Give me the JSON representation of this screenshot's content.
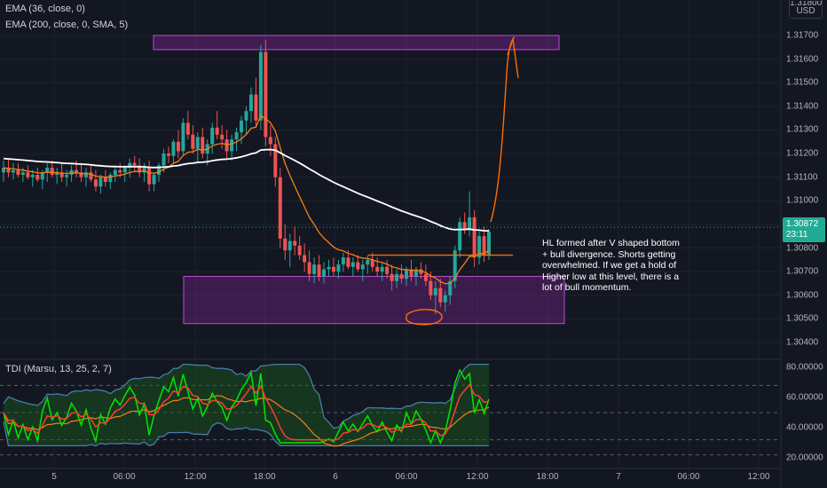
{
  "legend": {
    "ema36": "EMA (36, close, 0)",
    "ema200": "EMA (200, close, 0, SMA, 5)",
    "tdi": "TDI (Marsu, 13, 25, 2, 7)"
  },
  "currency": {
    "top": "1.31800",
    "unit": "USD"
  },
  "price_axis": [
    "1.31700",
    "1.31600",
    "1.31500",
    "1.31400",
    "1.31300",
    "1.31200",
    "1.31100",
    "1.31000",
    "1.30900",
    "1.30800",
    "1.30700",
    "1.30600",
    "1.30500",
    "1.30400"
  ],
  "current_price": {
    "value": "1.30872",
    "countdown": "23:11"
  },
  "tdi_axis": [
    "80.00000",
    "60.00000",
    "40.00000",
    "20.00000"
  ],
  "time_axis": [
    "5",
    "06:00",
    "12:00",
    "18:00",
    "6",
    "06:00",
    "12:00",
    "18:00",
    "7",
    "06:00",
    "12:00"
  ],
  "annotation": "HL formed after V shaped bottom + bull divergence. Shorts getting overwhelmed. If we get a hold of Higher low at this level, there is a lot of bull momentum.",
  "colors": {
    "background": "#131722",
    "bull": "#26a69a",
    "bear": "#ef5350",
    "ema36": "#f57f17",
    "ema200": "#ffffff",
    "zone_fill": "#9c27b0",
    "drawing": "#ff6d00",
    "tdi_green": "#00e600",
    "tdi_red": "#ff3b30",
    "tdi_band": "#4a7ba7"
  },
  "chart_data": {
    "type": "candlestick",
    "symbol_currency": "USD",
    "ylim": [
      1.3036,
      1.3182
    ],
    "candles": [
      [
        1.3112,
        1.3117,
        1.3108,
        1.3114
      ],
      [
        1.3114,
        1.3118,
        1.311,
        1.3112
      ],
      [
        1.3112,
        1.3116,
        1.3109,
        1.3113
      ],
      [
        1.3113,
        1.3116,
        1.311,
        1.3111
      ],
      [
        1.3111,
        1.3114,
        1.3108,
        1.3112
      ],
      [
        1.3112,
        1.3115,
        1.3109,
        1.311
      ],
      [
        1.311,
        1.3113,
        1.3106,
        1.3111
      ],
      [
        1.3111,
        1.3114,
        1.3108,
        1.3109
      ],
      [
        1.3109,
        1.3113,
        1.3105,
        1.3112
      ],
      [
        1.3112,
        1.3116,
        1.3108,
        1.3114
      ],
      [
        1.3114,
        1.3117,
        1.311,
        1.3111
      ],
      [
        1.3111,
        1.3114,
        1.3107,
        1.3112
      ],
      [
        1.3112,
        1.3116,
        1.3108,
        1.311
      ],
      [
        1.311,
        1.3113,
        1.3106,
        1.3111
      ],
      [
        1.3111,
        1.3115,
        1.3108,
        1.3113
      ],
      [
        1.3113,
        1.3117,
        1.311,
        1.3112
      ],
      [
        1.3112,
        1.3116,
        1.3108,
        1.311
      ],
      [
        1.311,
        1.3114,
        1.3106,
        1.3112
      ],
      [
        1.3112,
        1.3115,
        1.3108,
        1.3109
      ],
      [
        1.3109,
        1.3113,
        1.3104,
        1.3106
      ],
      [
        1.3106,
        1.3111,
        1.3103,
        1.311
      ],
      [
        1.311,
        1.3113,
        1.3106,
        1.3108
      ],
      [
        1.3108,
        1.3112,
        1.3105,
        1.3111
      ],
      [
        1.3111,
        1.3115,
        1.3108,
        1.3113
      ],
      [
        1.3113,
        1.3116,
        1.311,
        1.3112
      ],
      [
        1.3112,
        1.3115,
        1.3108,
        1.3114
      ],
      [
        1.3114,
        1.3118,
        1.311,
        1.3116
      ],
      [
        1.3116,
        1.3119,
        1.3112,
        1.3115
      ],
      [
        1.3115,
        1.3118,
        1.311,
        1.3112
      ],
      [
        1.3112,
        1.3116,
        1.3108,
        1.3114
      ],
      [
        1.3114,
        1.3117,
        1.3104,
        1.3107
      ],
      [
        1.3107,
        1.3112,
        1.3104,
        1.3111
      ],
      [
        1.3111,
        1.3116,
        1.3108,
        1.3115
      ],
      [
        1.3115,
        1.3122,
        1.3112,
        1.312
      ],
      [
        1.312,
        1.3123,
        1.3116,
        1.3119
      ],
      [
        1.3119,
        1.3126,
        1.3116,
        1.3125
      ],
      [
        1.3125,
        1.313,
        1.3118,
        1.3121
      ],
      [
        1.3121,
        1.3135,
        1.3119,
        1.3133
      ],
      [
        1.3133,
        1.3138,
        1.3126,
        1.3128
      ],
      [
        1.3128,
        1.3132,
        1.312,
        1.3122
      ],
      [
        1.3122,
        1.3129,
        1.3116,
        1.3127
      ],
      [
        1.3127,
        1.3131,
        1.3118,
        1.312
      ],
      [
        1.312,
        1.3126,
        1.3115,
        1.3124
      ],
      [
        1.3124,
        1.3133,
        1.312,
        1.3131
      ],
      [
        1.3131,
        1.3138,
        1.3126,
        1.3128
      ],
      [
        1.3128,
        1.3132,
        1.3122,
        1.3126
      ],
      [
        1.3126,
        1.313,
        1.3118,
        1.3121
      ],
      [
        1.3121,
        1.3128,
        1.3117,
        1.3126
      ],
      [
        1.3126,
        1.3131,
        1.3121,
        1.3129
      ],
      [
        1.3129,
        1.3136,
        1.3124,
        1.3134
      ],
      [
        1.3134,
        1.314,
        1.3128,
        1.3138
      ],
      [
        1.3138,
        1.3148,
        1.3133,
        1.3145
      ],
      [
        1.3145,
        1.3152,
        1.3131,
        1.3134
      ],
      [
        1.3134,
        1.3166,
        1.313,
        1.3163
      ],
      [
        1.3163,
        1.3168,
        1.3123,
        1.3127
      ],
      [
        1.3127,
        1.3132,
        1.3119,
        1.3124
      ],
      [
        1.3124,
        1.3127,
        1.3106,
        1.311
      ],
      [
        1.311,
        1.3114,
        1.308,
        1.3084
      ],
      [
        1.3084,
        1.309,
        1.3075,
        1.3079
      ],
      [
        1.3079,
        1.3086,
        1.3072,
        1.3083
      ],
      [
        1.3083,
        1.3089,
        1.3077,
        1.3081
      ],
      [
        1.3081,
        1.3085,
        1.3075,
        1.3077
      ],
      [
        1.3077,
        1.3082,
        1.307,
        1.3074
      ],
      [
        1.3074,
        1.3079,
        1.3066,
        1.3069
      ],
      [
        1.3069,
        1.3076,
        1.3065,
        1.3073
      ],
      [
        1.3073,
        1.3077,
        1.3066,
        1.3068
      ],
      [
        1.3068,
        1.3074,
        1.3065,
        1.3071
      ],
      [
        1.3071,
        1.3075,
        1.3068,
        1.3072
      ],
      [
        1.3072,
        1.3076,
        1.3068,
        1.307
      ],
      [
        1.307,
        1.3075,
        1.3067,
        1.3073
      ],
      [
        1.3073,
        1.3078,
        1.307,
        1.3076
      ],
      [
        1.3076,
        1.3079,
        1.3071,
        1.3072
      ],
      [
        1.3072,
        1.3076,
        1.3068,
        1.3074
      ],
      [
        1.3074,
        1.3077,
        1.307,
        1.3071
      ],
      [
        1.3071,
        1.3075,
        1.3066,
        1.3073
      ],
      [
        1.3073,
        1.3077,
        1.3069,
        1.3075
      ],
      [
        1.3075,
        1.3078,
        1.307,
        1.3072
      ],
      [
        1.3072,
        1.3076,
        1.3068,
        1.307
      ],
      [
        1.307,
        1.3074,
        1.3066,
        1.3072
      ],
      [
        1.3072,
        1.3075,
        1.3067,
        1.3069
      ],
      [
        1.3069,
        1.3073,
        1.3062,
        1.3066
      ],
      [
        1.3066,
        1.3071,
        1.3063,
        1.3069
      ],
      [
        1.3069,
        1.3073,
        1.3065,
        1.3067
      ],
      [
        1.3067,
        1.3072,
        1.3064,
        1.3071
      ],
      [
        1.3071,
        1.3075,
        1.3066,
        1.3068
      ],
      [
        1.3068,
        1.3072,
        1.3064,
        1.3071
      ],
      [
        1.3071,
        1.3074,
        1.3067,
        1.3069
      ],
      [
        1.3069,
        1.3073,
        1.3064,
        1.3066
      ],
      [
        1.3066,
        1.307,
        1.3058,
        1.306
      ],
      [
        1.306,
        1.3066,
        1.3052,
        1.3063
      ],
      [
        1.3063,
        1.3067,
        1.3055,
        1.3057
      ],
      [
        1.3057,
        1.3062,
        1.3053,
        1.306
      ],
      [
        1.306,
        1.3068,
        1.3056,
        1.3066
      ],
      [
        1.3066,
        1.3081,
        1.3063,
        1.3079
      ],
      [
        1.3079,
        1.3093,
        1.3076,
        1.3091
      ],
      [
        1.3091,
        1.3095,
        1.3086,
        1.3088
      ],
      [
        1.3088,
        1.3104,
        1.3085,
        1.3093
      ],
      [
        1.3093,
        1.3096,
        1.3072,
        1.3076
      ],
      [
        1.3076,
        1.3087,
        1.3073,
        1.3085
      ],
      [
        1.3085,
        1.3089,
        1.3074,
        1.3077
      ],
      [
        1.3077,
        1.3088,
        1.3075,
        1.3087
      ]
    ],
    "zones": [
      {
        "from": 1.3164,
        "to": 1.317,
        "label": "resistance zone"
      },
      {
        "from": 1.3048,
        "to": 1.3068,
        "label": "demand zone"
      }
    ],
    "tdi_ylim": [
      15,
      85
    ]
  }
}
